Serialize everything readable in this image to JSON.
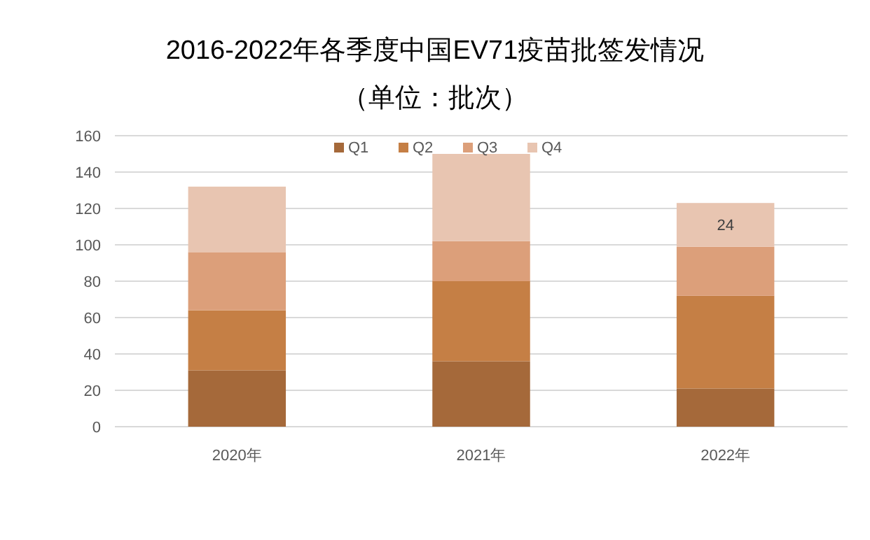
{
  "chart_data": {
    "type": "bar",
    "stacked": true,
    "title": "2016-2022年各季度中国EV71疫苗批签发情况",
    "subtitle": "（单位：批次）",
    "categories": [
      "2020年",
      "2021年",
      "2022年"
    ],
    "series": [
      {
        "name": "Q1",
        "color": "#a5693a",
        "values": [
          31,
          36,
          21
        ]
      },
      {
        "name": "Q2",
        "color": "#c57f45",
        "values": [
          33,
          44,
          51
        ]
      },
      {
        "name": "Q3",
        "color": "#dc9f7a",
        "values": [
          32,
          22,
          27
        ]
      },
      {
        "name": "Q4",
        "color": "#e8c5b1",
        "values": [
          36,
          48,
          24
        ],
        "value_labels": [
          null,
          null,
          "24"
        ]
      }
    ],
    "ylim": [
      0,
      160
    ],
    "yticks": [
      0,
      20,
      40,
      60,
      80,
      100,
      120,
      140,
      160
    ],
    "grid": "y",
    "legend": "top"
  }
}
